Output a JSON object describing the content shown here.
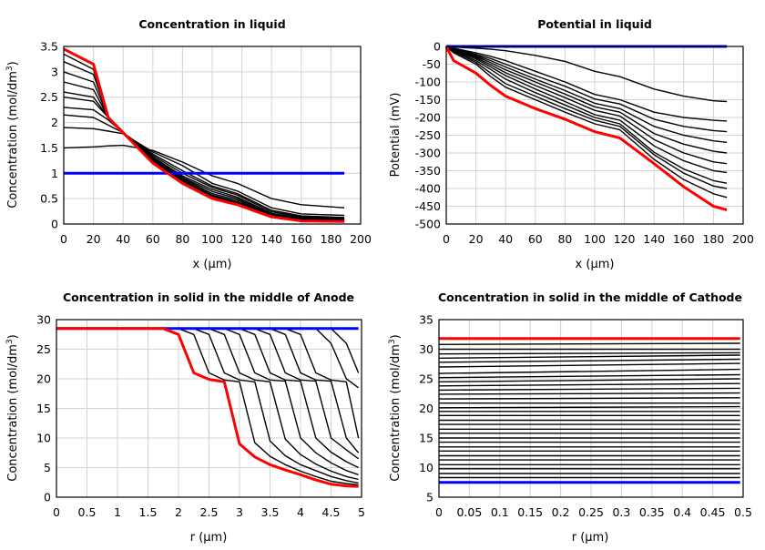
{
  "colors": {
    "initial": "#0000ff",
    "final": "#ff0000",
    "intermediate": "#000000",
    "grid": "#d3d3d3"
  },
  "chart_data": [
    {
      "type": "line",
      "title": "Concentration in liquid",
      "xlabel": "x (µm)",
      "ylabel": {
        "main": "Concentration (mol/dm",
        "sup": "3",
        "end": ")"
      },
      "xlim": [
        0,
        200
      ],
      "ylim": [
        0,
        3.5
      ],
      "xticks": [
        0,
        20,
        40,
        60,
        80,
        100,
        120,
        140,
        160,
        180,
        200
      ],
      "yticks": [
        0,
        0.5,
        1,
        1.5,
        2,
        2.5,
        3,
        3.5
      ],
      "grid": true,
      "x": [
        0,
        20,
        30,
        40,
        60,
        80,
        100,
        117,
        140,
        160,
        189
      ],
      "initial": [
        1,
        1,
        1,
        1,
        1,
        1,
        1,
        1,
        1,
        1,
        1
      ],
      "final": [
        3.45,
        3.15,
        2.1,
        1.8,
        1.2,
        0.8,
        0.5,
        0.38,
        0.14,
        0.06,
        0.05
      ],
      "intermediate": [
        [
          1.5,
          1.52,
          1.54,
          1.55,
          1.45,
          1.22,
          0.95,
          0.8,
          0.5,
          0.38,
          0.32
        ],
        [
          1.9,
          1.88,
          1.83,
          1.78,
          1.42,
          1.15,
          0.8,
          0.65,
          0.32,
          0.2,
          0.17
        ],
        [
          2.15,
          2.1,
          1.95,
          1.8,
          1.38,
          1.05,
          0.75,
          0.6,
          0.27,
          0.16,
          0.13
        ],
        [
          2.3,
          2.25,
          2.05,
          1.8,
          1.35,
          1.0,
          0.72,
          0.57,
          0.24,
          0.14,
          0.11
        ],
        [
          2.5,
          2.42,
          2.1,
          1.8,
          1.32,
          0.95,
          0.68,
          0.53,
          0.21,
          0.12,
          0.1
        ],
        [
          2.6,
          2.5,
          2.1,
          1.8,
          1.3,
          0.92,
          0.64,
          0.5,
          0.2,
          0.11,
          0.09
        ],
        [
          2.8,
          2.65,
          2.1,
          1.8,
          1.28,
          0.9,
          0.6,
          0.47,
          0.18,
          0.1,
          0.08
        ],
        [
          3.0,
          2.8,
          2.1,
          1.8,
          1.26,
          0.87,
          0.57,
          0.44,
          0.17,
          0.09,
          0.07
        ],
        [
          3.2,
          2.95,
          2.1,
          1.8,
          1.24,
          0.85,
          0.55,
          0.42,
          0.16,
          0.08,
          0.06
        ],
        [
          3.35,
          3.05,
          2.1,
          1.8,
          1.22,
          0.82,
          0.52,
          0.4,
          0.15,
          0.07,
          0.06
        ]
      ]
    },
    {
      "type": "line",
      "title": "Potential in liquid",
      "xlabel": "x (µm)",
      "ylabel": {
        "main": "Potential (mV)",
        "sup": "",
        "end": ""
      },
      "xlim": [
        0,
        200
      ],
      "ylim": [
        -500,
        0
      ],
      "xticks": [
        0,
        20,
        40,
        60,
        80,
        100,
        120,
        140,
        160,
        180,
        200
      ],
      "yticks": [
        0,
        -50,
        -100,
        -150,
        -200,
        -250,
        -300,
        -350,
        -400,
        -450,
        -500
      ],
      "grid": true,
      "x": [
        0,
        5,
        20,
        30,
        40,
        60,
        80,
        100,
        117,
        140,
        160,
        180,
        189
      ],
      "initial": [
        0,
        0,
        0,
        0,
        0,
        0,
        0,
        0,
        0,
        0,
        0,
        0,
        0
      ],
      "final": [
        0,
        -40,
        -75,
        -110,
        -140,
        -175,
        -205,
        -240,
        -258,
        -330,
        -395,
        -450,
        -460
      ],
      "intermediate": [
        [
          0,
          -2,
          -5,
          -8,
          -12,
          -25,
          -42,
          -70,
          -85,
          -120,
          -140,
          -153,
          -155
        ],
        [
          0,
          -5,
          -18,
          -28,
          -40,
          -70,
          -100,
          -135,
          -150,
          -185,
          -200,
          -208,
          -210
        ],
        [
          0,
          -6,
          -22,
          -34,
          -50,
          -82,
          -112,
          -148,
          -162,
          -205,
          -225,
          -237,
          -240
        ],
        [
          0,
          -7,
          -25,
          -40,
          -58,
          -92,
          -124,
          -160,
          -175,
          -225,
          -250,
          -266,
          -270
        ],
        [
          0,
          -8,
          -28,
          -46,
          -66,
          -100,
          -134,
          -170,
          -185,
          -245,
          -275,
          -295,
          -300
        ],
        [
          0,
          -9,
          -31,
          -52,
          -74,
          -110,
          -144,
          -180,
          -196,
          -262,
          -300,
          -325,
          -330
        ],
        [
          0,
          -10,
          -35,
          -58,
          -82,
          -120,
          -155,
          -192,
          -208,
          -280,
          -322,
          -350,
          -355
        ],
        [
          0,
          -12,
          -40,
          -65,
          -92,
          -130,
          -165,
          -200,
          -218,
          -298,
          -345,
          -378,
          -385
        ],
        [
          0,
          -14,
          -45,
          -75,
          -105,
          -140,
          -175,
          -208,
          -225,
          -305,
          -357,
          -393,
          -400
        ],
        [
          0,
          -18,
          -50,
          -85,
          -115,
          -150,
          -185,
          -218,
          -235,
          -318,
          -375,
          -415,
          -425
        ]
      ]
    },
    {
      "type": "line",
      "title": "Concentration in solid in the middle of Anode",
      "xlabel": "r (µm)",
      "ylabel": {
        "main": "Concentration (mol/dm",
        "sup": "3",
        "end": ")"
      },
      "xlim": [
        0,
        5
      ],
      "ylim": [
        0,
        30
      ],
      "xticks": [
        0,
        0.5,
        1,
        1.5,
        2,
        2.5,
        3,
        3.5,
        4,
        4.5,
        5
      ],
      "yticks": [
        0,
        5,
        10,
        15,
        20,
        25,
        30
      ],
      "grid": true,
      "x": [
        0,
        0.25,
        0.5,
        0.75,
        1,
        1.25,
        1.5,
        1.75,
        2,
        2.25,
        2.5,
        2.75,
        3,
        3.25,
        3.5,
        3.75,
        4,
        4.25,
        4.5,
        4.75,
        4.95
      ],
      "initial": [
        28.5,
        28.5,
        28.5,
        28.5,
        28.5,
        28.5,
        28.5,
        28.5,
        28.5,
        28.5,
        28.5,
        28.5,
        28.5,
        28.5,
        28.5,
        28.5,
        28.5,
        28.5,
        28.5,
        28.5,
        28.5
      ],
      "final": [
        28.5,
        28.5,
        28.5,
        28.5,
        28.5,
        28.5,
        28.5,
        28.5,
        27.5,
        21,
        19.9,
        19.5,
        9,
        6.8,
        5.5,
        4.6,
        3.8,
        2.9,
        2.2,
        1.9,
        1.8
      ],
      "intermediate": [
        [
          28.5,
          28.5,
          28.5,
          28.5,
          28.5,
          28.5,
          28.5,
          28.5,
          28.5,
          27.5,
          21,
          19.8,
          19.5,
          9.2,
          6.9,
          5.5,
          4.4,
          3.5,
          2.7,
          2.3,
          2.1
        ],
        [
          28.5,
          28.5,
          28.5,
          28.5,
          28.5,
          28.5,
          28.5,
          28.5,
          28.5,
          28.5,
          27.5,
          21,
          19.8,
          19.5,
          9.5,
          7,
          5.5,
          4.5,
          3.5,
          2.8,
          2.4
        ],
        [
          28.5,
          28.5,
          28.5,
          28.5,
          28.5,
          28.5,
          28.5,
          28.5,
          28.5,
          28.5,
          28.5,
          27.5,
          21,
          19.8,
          19.5,
          9.8,
          7.2,
          5.6,
          4.4,
          3.5,
          3.0
        ],
        [
          28.5,
          28.5,
          28.5,
          28.5,
          28.5,
          28.5,
          28.5,
          28.5,
          28.5,
          28.5,
          28.5,
          28.5,
          27.5,
          21,
          19.8,
          19.6,
          10,
          7.5,
          5.8,
          4.5,
          3.8
        ],
        [
          28.5,
          28.5,
          28.5,
          28.5,
          28.5,
          28.5,
          28.5,
          28.5,
          28.5,
          28.5,
          28.5,
          28.5,
          28.5,
          27.5,
          21,
          19.8,
          19.6,
          10,
          7.6,
          6,
          5
        ],
        [
          28.5,
          28.5,
          28.5,
          28.5,
          28.5,
          28.5,
          28.5,
          28.5,
          28.5,
          28.5,
          28.5,
          28.5,
          28.5,
          28.5,
          27.5,
          21,
          19.8,
          19.6,
          10,
          8,
          6.5
        ],
        [
          28.5,
          28.5,
          28.5,
          28.5,
          28.5,
          28.5,
          28.5,
          28.5,
          28.5,
          28.5,
          28.5,
          28.5,
          28.5,
          28.5,
          28.5,
          27.5,
          21,
          19.8,
          19.6,
          10,
          7.5
        ],
        [
          28.5,
          28.5,
          28.5,
          28.5,
          28.5,
          28.5,
          28.5,
          28.5,
          28.5,
          28.5,
          28.5,
          28.5,
          28.5,
          28.5,
          28.5,
          28.5,
          27.5,
          21,
          19.8,
          19.5,
          10
        ],
        [
          28.5,
          28.5,
          28.5,
          28.5,
          28.5,
          28.5,
          28.5,
          28.5,
          28.5,
          28.5,
          28.5,
          28.5,
          28.5,
          28.5,
          28.5,
          28.5,
          28.5,
          28.5,
          26,
          20,
          18.5
        ],
        [
          28.5,
          28.5,
          28.5,
          28.5,
          28.5,
          28.5,
          28.5,
          28.5,
          28.5,
          28.5,
          28.5,
          28.5,
          28.5,
          28.5,
          28.5,
          28.5,
          28.5,
          28.5,
          28.5,
          26,
          21
        ]
      ]
    },
    {
      "type": "line",
      "title": "Concentration in solid in the middle of Cathode",
      "xlabel": "r (µm)",
      "ylabel": {
        "main": "Concentration (mol/dm",
        "sup": "3",
        "end": ")"
      },
      "xlim": [
        0,
        0.5
      ],
      "ylim": [
        5,
        35
      ],
      "xticks": [
        0,
        0.05,
        0.1,
        0.15,
        0.2,
        0.25,
        0.3,
        0.35,
        0.4,
        0.45,
        0.5
      ],
      "yticks": [
        5,
        10,
        15,
        20,
        25,
        30,
        35
      ],
      "grid": true,
      "x": [
        0,
        0.495
      ],
      "initial": [
        7.5,
        7.5
      ],
      "final": [
        31.8,
        31.8
      ],
      "intermediate": [
        [
          8.3,
          8.3
        ],
        [
          9.0,
          9.0
        ],
        [
          9.8,
          9.8
        ],
        [
          10.5,
          10.5
        ],
        [
          11.3,
          11.3
        ],
        [
          12.0,
          12.0
        ],
        [
          12.8,
          12.8
        ],
        [
          13.5,
          13.5
        ],
        [
          14.3,
          14.3
        ],
        [
          15.0,
          15.0
        ],
        [
          15.8,
          15.8
        ],
        [
          16.5,
          16.5
        ],
        [
          17.3,
          17.3
        ],
        [
          18.0,
          18.0
        ],
        [
          18.8,
          18.8
        ],
        [
          19.5,
          19.5
        ],
        [
          20.1,
          20.3
        ],
        [
          20.9,
          20.9
        ],
        [
          21.6,
          21.8
        ],
        [
          22.4,
          22.6
        ],
        [
          23.1,
          23.4
        ],
        [
          23.8,
          24.2
        ],
        [
          24.5,
          25.0
        ],
        [
          25.2,
          25.7
        ],
        [
          25.9,
          26.6
        ],
        [
          27.0,
          27.6
        ],
        [
          27.8,
          28.3
        ],
        [
          28.5,
          29.0
        ],
        [
          29.2,
          29.4
        ],
        [
          30.0,
          30.0
        ],
        [
          30.8,
          31.0
        ]
      ]
    }
  ]
}
